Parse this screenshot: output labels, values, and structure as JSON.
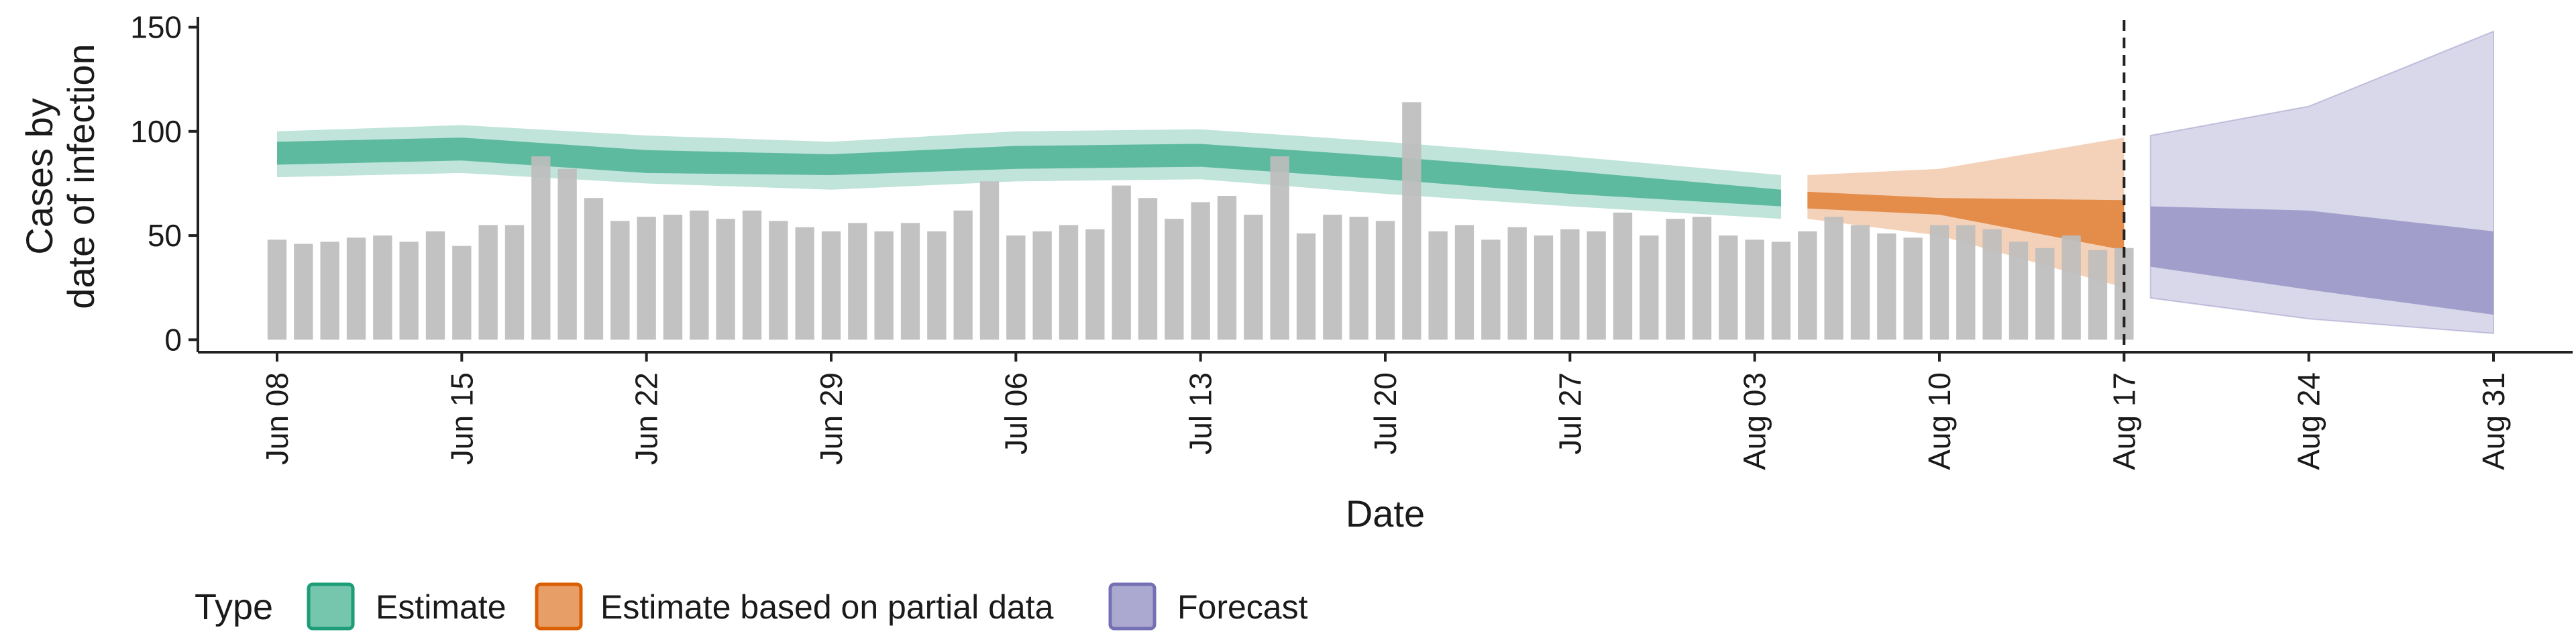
{
  "chart_data": {
    "type": "bar",
    "xlabel": "Date",
    "ylabel_lines": [
      "Cases by",
      "date of infection"
    ],
    "ylim": [
      -6,
      155
    ],
    "xlim": [
      "2020-06-05",
      "2020-09-03"
    ],
    "y_ticks": [
      0,
      50,
      100,
      150
    ],
    "x_ticks": [
      {
        "date": "2020-06-08",
        "label": "Jun 08"
      },
      {
        "date": "2020-06-15",
        "label": "Jun 15"
      },
      {
        "date": "2020-06-22",
        "label": "Jun 22"
      },
      {
        "date": "2020-06-29",
        "label": "Jun 29"
      },
      {
        "date": "2020-07-06",
        "label": "Jul 06"
      },
      {
        "date": "2020-07-13",
        "label": "Jul 13"
      },
      {
        "date": "2020-07-20",
        "label": "Jul 20"
      },
      {
        "date": "2020-07-27",
        "label": "Jul 27"
      },
      {
        "date": "2020-08-03",
        "label": "Aug 03"
      },
      {
        "date": "2020-08-10",
        "label": "Aug 10"
      },
      {
        "date": "2020-08-17",
        "label": "Aug 17"
      },
      {
        "date": "2020-08-24",
        "label": "Aug 24"
      },
      {
        "date": "2020-08-31",
        "label": "Aug 31"
      }
    ],
    "bars_start_date": "2020-06-08",
    "bars_end_date": "2020-08-17",
    "bar_values": [
      48,
      46,
      47,
      49,
      50,
      47,
      52,
      45,
      55,
      55,
      88,
      82,
      68,
      57,
      59,
      60,
      62,
      58,
      62,
      57,
      54,
      52,
      56,
      52,
      56,
      52,
      62,
      76,
      50,
      52,
      55,
      53,
      74,
      68,
      58,
      66,
      69,
      60,
      88,
      51,
      60,
      59,
      57,
      114,
      52,
      55,
      48,
      54,
      50,
      53,
      52,
      61,
      50,
      58,
      59,
      50,
      48,
      47,
      52,
      59,
      55,
      51,
      49,
      55,
      55,
      53,
      47,
      44,
      50,
      43,
      44
    ],
    "vline_date": "2020-08-17",
    "series": [
      {
        "name": "Estimate",
        "color": "#1b9e77",
        "dates": [
          "2020-06-08",
          "2020-06-15",
          "2020-06-22",
          "2020-06-29",
          "2020-07-06",
          "2020-07-13",
          "2020-07-20",
          "2020-07-27",
          "2020-08-04"
        ],
        "outer_lower": [
          78,
          80,
          75,
          72,
          76,
          77,
          70,
          64,
          58
        ],
        "outer_upper": [
          100,
          103,
          98,
          95,
          100,
          101,
          95,
          88,
          79
        ],
        "inner_lower": [
          84,
          86,
          80,
          79,
          82,
          83,
          77,
          70,
          64
        ],
        "inner_upper": [
          95,
          97,
          91,
          89,
          93,
          94,
          88,
          81,
          72
        ]
      },
      {
        "name": "Estimate based on partial data",
        "color": "#d95f02",
        "dates": [
          "2020-08-05",
          "2020-08-10",
          "2020-08-17"
        ],
        "outer_lower": [
          58,
          50,
          25
        ],
        "outer_upper": [
          79,
          82,
          97
        ],
        "inner_lower": [
          63,
          60,
          43
        ],
        "inner_upper": [
          71,
          68,
          67
        ]
      },
      {
        "name": "Forecast",
        "color": "#7570b3",
        "dates": [
          "2020-08-18",
          "2020-08-24",
          "2020-08-31"
        ],
        "outer_lower": [
          20,
          10,
          3
        ],
        "outer_upper": [
          98,
          112,
          148
        ],
        "inner_lower": [
          35,
          24,
          12
        ],
        "inner_upper": [
          64,
          62,
          52
        ]
      }
    ],
    "legend": {
      "title": "Type",
      "position": "bottom",
      "items": [
        {
          "label": "Estimate",
          "color": "#1b9e77"
        },
        {
          "label": "Estimate based on partial data",
          "color": "#d95f02"
        },
        {
          "label": "Forecast",
          "color": "#7570b3"
        }
      ]
    },
    "bar_color": "#bdbdbd",
    "grid": false
  }
}
